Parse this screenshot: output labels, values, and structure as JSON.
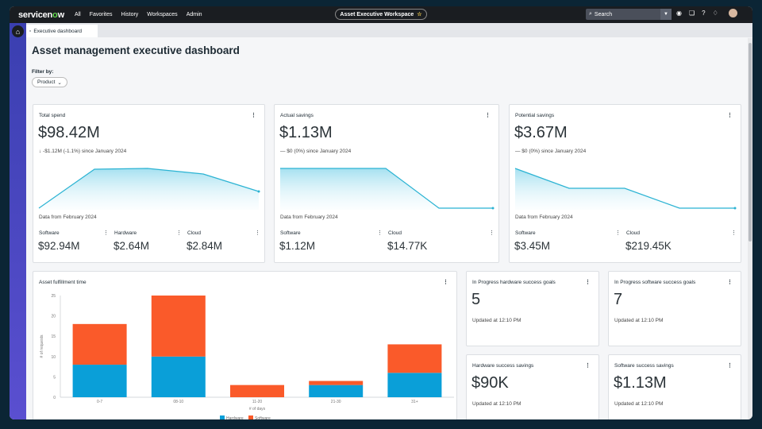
{
  "header": {
    "logo": "servicenow",
    "nav": [
      "All",
      "Favorites",
      "History",
      "Workspaces",
      "Admin"
    ],
    "workspace": "Asset Executive Workspace",
    "search_placeholder": "Search"
  },
  "tab": {
    "label": "Executive dashboard"
  },
  "page": {
    "title": "Asset management executive dashboard",
    "filter_label": "Filter by:",
    "filter_value": "Product"
  },
  "cards": [
    {
      "title": "Total spend",
      "value": "$98.42M",
      "delta": "↓ -$1.12M (-1.1%) since January 2024",
      "from": "Data from February 2024",
      "subs": [
        {
          "label": "Software",
          "value": "$92.94M"
        },
        {
          "label": "Hardware",
          "value": "$2.64M"
        },
        {
          "label": "Cloud",
          "value": "$2.84M"
        }
      ]
    },
    {
      "title": "Actual savings",
      "value": "$1.13M",
      "delta": "— $0 (0%) since January 2024",
      "from": "Data from February 2024",
      "subs": [
        {
          "label": "Software",
          "value": "$1.12M"
        },
        {
          "label": "Cloud",
          "value": "$14.77K"
        }
      ]
    },
    {
      "title": "Potential savings",
      "value": "$3.67M",
      "delta": "— $0 (0%) since January 2024",
      "from": "Data from February 2024",
      "subs": [
        {
          "label": "Software",
          "value": "$3.45M"
        },
        {
          "label": "Cloud",
          "value": "$219.45K"
        }
      ]
    }
  ],
  "small_cards": [
    {
      "title": "In Progress hardware success goals",
      "value": "5",
      "updated": "Updated at 12:10 PM"
    },
    {
      "title": "In Progress software success goals",
      "value": "7",
      "updated": "Updated at 12:10 PM"
    },
    {
      "title": "Hardware success savings",
      "value": "$90K",
      "updated": "Updated at 12:10 PM"
    },
    {
      "title": "Software success savings",
      "value": "$1.13M",
      "updated": "Updated at 12:10 PM"
    }
  ],
  "chart_data": {
    "type": "bar",
    "stacked": true,
    "title": "Asset fulfillment time",
    "xlabel": "# of days",
    "ylabel": "# of requests",
    "categories": [
      "0-7",
      "08-10",
      "11-20",
      "21-30",
      "31+"
    ],
    "ylim": [
      0,
      25
    ],
    "yticks": [
      0,
      5,
      10,
      15,
      20,
      25
    ],
    "legend": "bottom",
    "series": [
      {
        "name": "Hardware",
        "color": "#0a9fd8",
        "values": [
          8,
          10,
          0,
          3,
          6
        ]
      },
      {
        "name": "Software",
        "color": "#fa5a2a",
        "values": [
          10,
          15,
          3,
          1,
          7
        ]
      }
    ]
  }
}
